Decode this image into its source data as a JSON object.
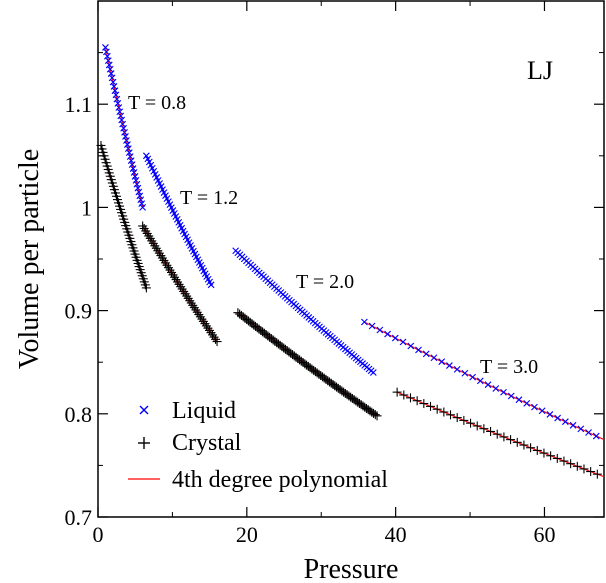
{
  "chart_data": {
    "type": "scatter",
    "title": "",
    "xlabel": "Pressure",
    "ylabel": "Volume per particle",
    "xlim": [
      0,
      68
    ],
    "ylim": [
      0.7,
      1.2
    ],
    "x_ticks": [
      0,
      20,
      40,
      60
    ],
    "y_ticks": [
      0.7,
      0.8,
      0.9,
      1.0,
      1.1
    ],
    "x_tick_labels": [
      "0",
      "20",
      "40",
      "60"
    ],
    "y_tick_labels": [
      "0.7",
      "0.8",
      "0.9",
      "1",
      "1.1"
    ],
    "grid": false,
    "legend_position": "bottom-left",
    "system_label": "LJ",
    "series": [
      {
        "name": "Liquid",
        "marker": "x",
        "color": "#0000ff"
      },
      {
        "name": "Crystal",
        "marker": "+",
        "color": "#000000"
      },
      {
        "name": "4th degree polynomial",
        "marker": "line",
        "color": "#ff0000"
      }
    ],
    "curves": [
      {
        "temperature_label": "T = 0.8",
        "liquid": {
          "p_range": [
            1.0,
            6.0
          ],
          "v_range": [
            1.155,
            1.0
          ],
          "points": 40
        },
        "crystal": {
          "p_range": [
            0.4,
            6.5
          ],
          "v_range": [
            1.06,
            0.922
          ],
          "points": 45
        }
      },
      {
        "temperature_label": "T = 1.2",
        "liquid": {
          "p_range": [
            6.5,
            15.2
          ],
          "v_range": [
            1.05,
            0.925
          ],
          "points": 45
        },
        "crystal": {
          "p_range": [
            6.0,
            16.0
          ],
          "v_range": [
            0.982,
            0.87
          ],
          "points": 50
        }
      },
      {
        "temperature_label": "T = 2.0",
        "liquid": {
          "p_range": [
            18.5,
            37.0
          ],
          "v_range": [
            0.958,
            0.84
          ],
          "points": 65
        },
        "crystal": {
          "p_range": [
            18.8,
            37.5
          ],
          "v_range": [
            0.898,
            0.798
          ],
          "points": 80
        }
      },
      {
        "temperature_label": "T = 3.0",
        "liquid": {
          "p_range": [
            35.8,
            68.0
          ],
          "v_range": [
            0.889,
            0.775
          ],
          "points": 32
        },
        "crystal": {
          "p_range": [
            40.2,
            68.0
          ],
          "v_range": [
            0.821,
            0.739
          ],
          "points": 32
        }
      }
    ]
  }
}
